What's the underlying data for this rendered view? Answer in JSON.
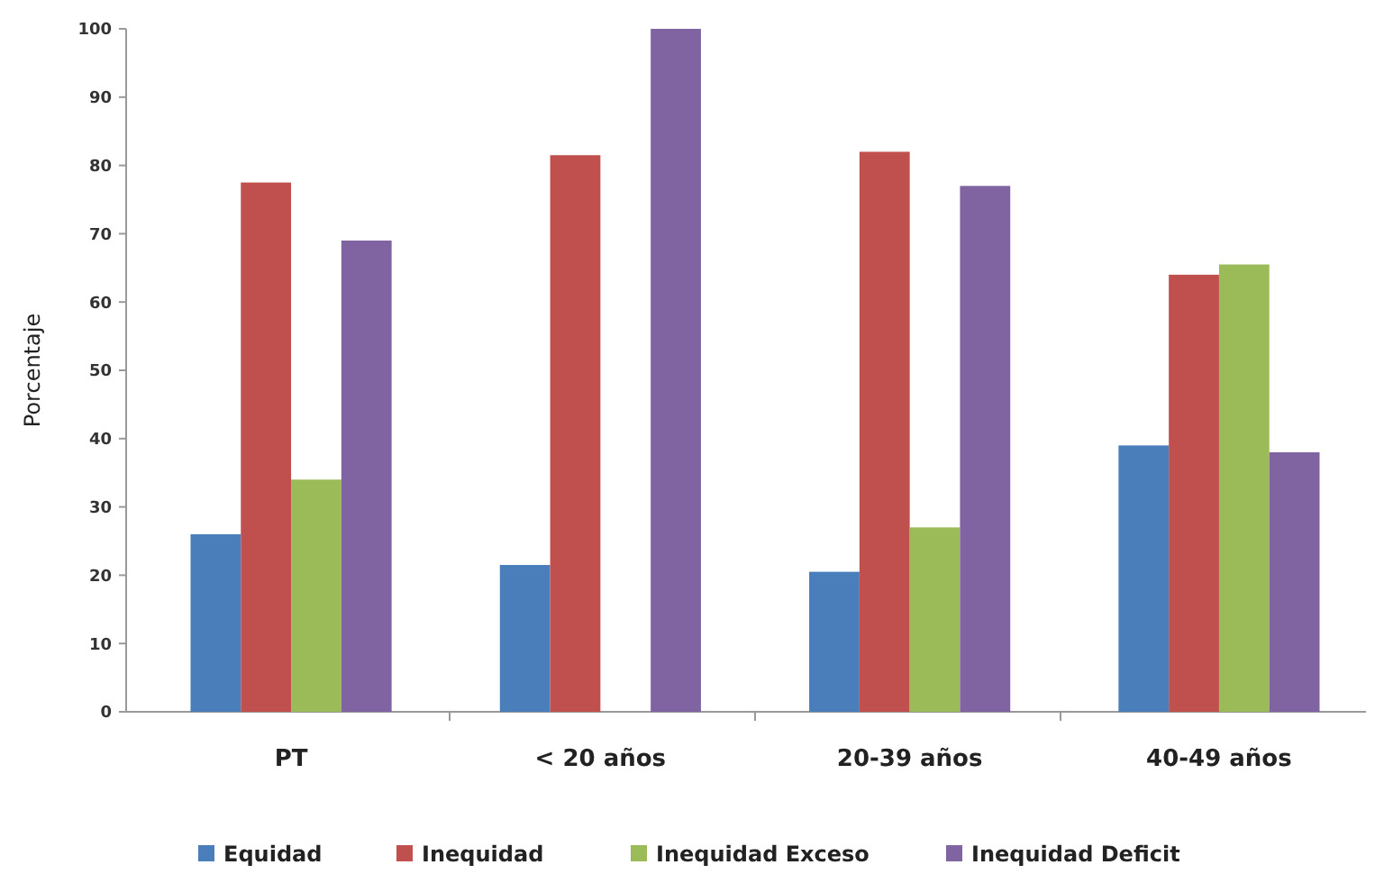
{
  "chart_data": {
    "type": "bar",
    "ylabel": "Porcentaje",
    "categories": [
      "PT",
      "< 20 años",
      "20-39 años",
      "40-49 años"
    ],
    "series": [
      {
        "name": "Equidad",
        "color": "#4a7ebb",
        "values": [
          26,
          21.5,
          20.5,
          39
        ]
      },
      {
        "name": "Inequidad",
        "color": "#c0504d",
        "values": [
          77.5,
          81.5,
          82,
          64
        ]
      },
      {
        "name": "Inequidad Exceso",
        "color": "#9bbb59",
        "values": [
          34,
          null,
          27,
          65.5
        ]
      },
      {
        "name": "Inequidad Deficit",
        "color": "#8064a2",
        "values": [
          69,
          100,
          77,
          38
        ]
      }
    ],
    "ylim": [
      0,
      100
    ],
    "yticks": [
      0,
      10,
      20,
      30,
      40,
      50,
      60,
      70,
      80,
      90,
      100
    ],
    "grid": false,
    "legend": "bottom"
  }
}
